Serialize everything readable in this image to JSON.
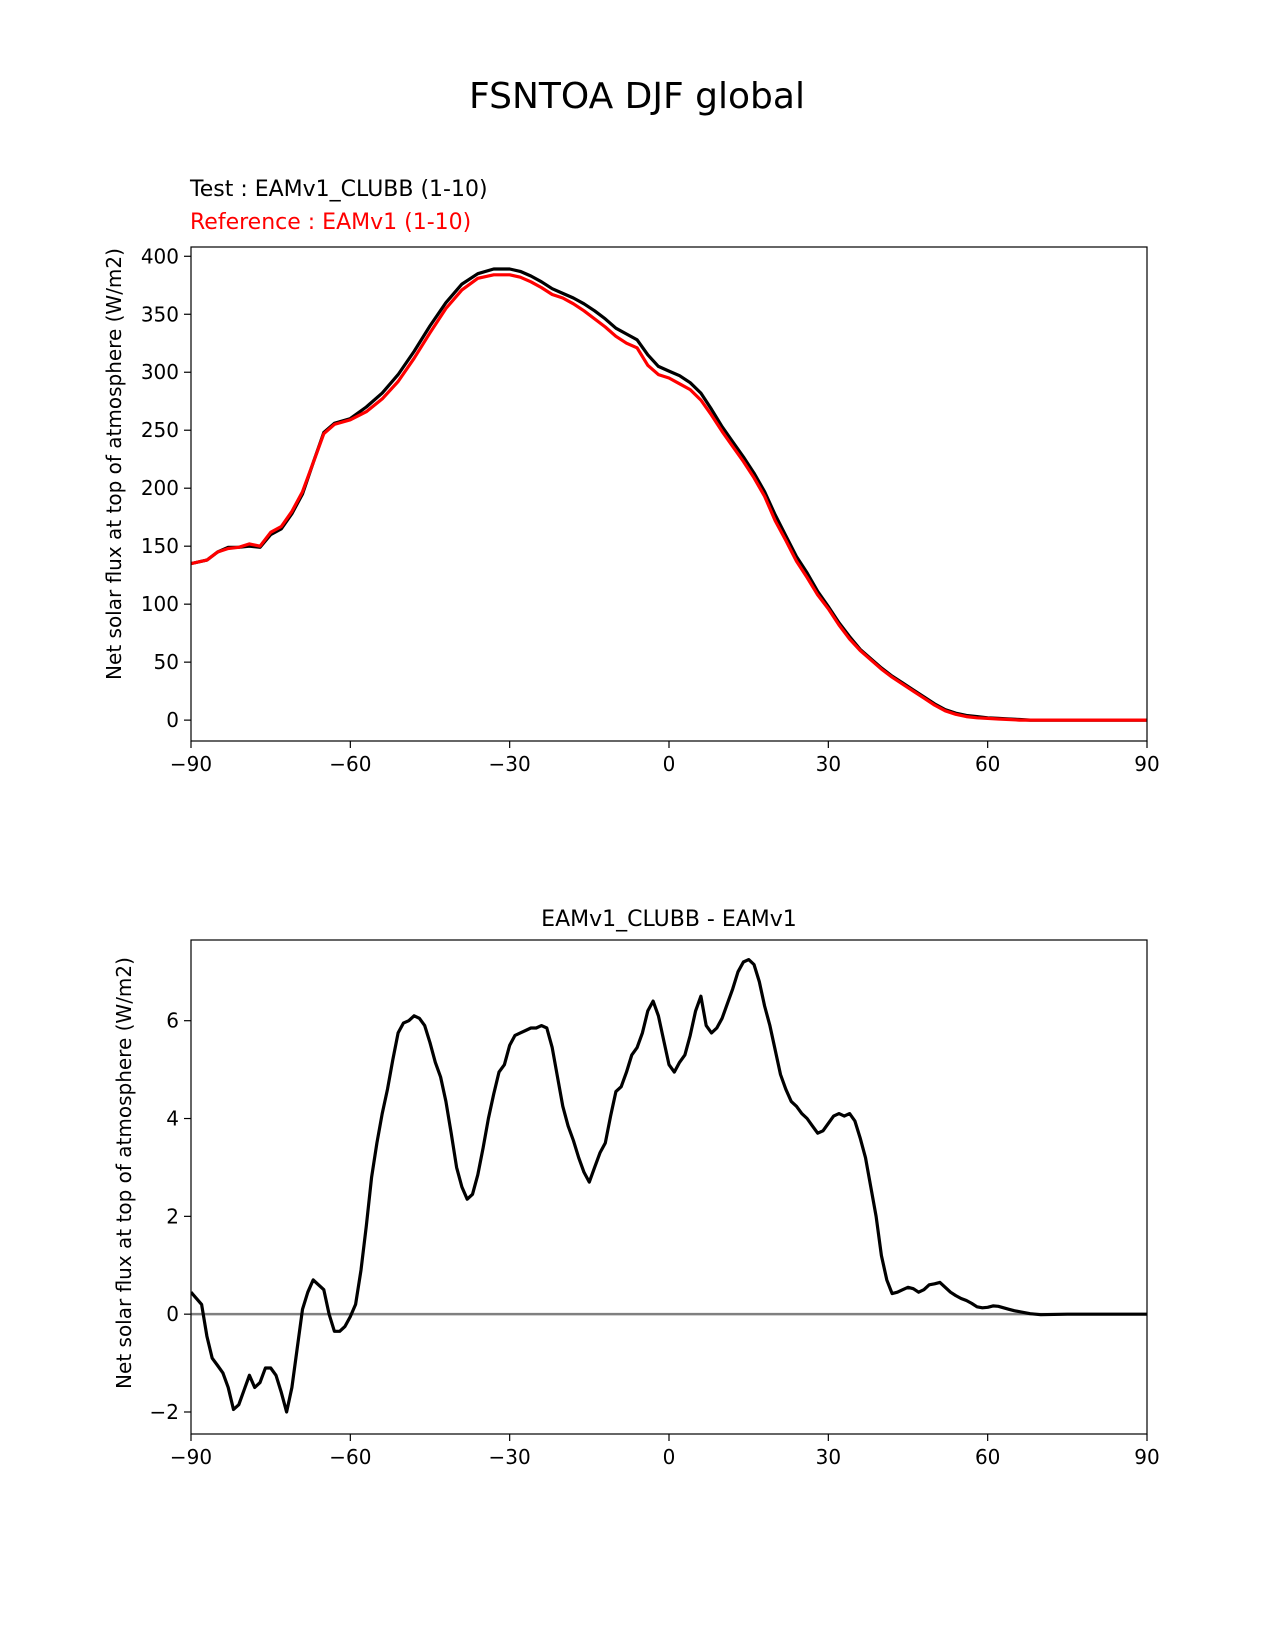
{
  "figure_title": "FSNTOA DJF global",
  "colors": {
    "test": "#000000",
    "reference": "#ff0000",
    "zero_line": "#808080",
    "axes": "#000000"
  },
  "chart_data": [
    {
      "type": "line",
      "subtitle_test": "Test : EAMv1_CLUBB (1-10)",
      "subtitle_reference": "Reference : EAMv1 (1-10)",
      "xlabel": "",
      "ylabel": "Net solar flux at top of atmosphere (W/m2)",
      "xlim": [
        -90,
        90
      ],
      "ylim": [
        -18,
        408
      ],
      "xticks": [
        -90,
        -60,
        -30,
        0,
        30,
        60,
        90
      ],
      "xtick_labels": [
        "−90",
        "−60",
        "−30",
        "0",
        "30",
        "60",
        "90"
      ],
      "yticks": [
        0,
        50,
        100,
        150,
        200,
        250,
        300,
        350,
        400
      ],
      "ytick_labels": [
        "0",
        "50",
        "100",
        "150",
        "200",
        "250",
        "300",
        "350",
        "400"
      ],
      "series": [
        {
          "name": "Test : EAMv1_CLUBB (1-10)",
          "color": "#000000",
          "x": [
            -90,
            -87,
            -85,
            -83,
            -81,
            -79,
            -77,
            -75,
            -73,
            -71,
            -69,
            -67,
            -65,
            -63,
            -60,
            -57,
            -54,
            -51,
            -48,
            -45,
            -42,
            -39,
            -36,
            -33,
            -30,
            -28,
            -26,
            -24,
            -22,
            -20,
            -18,
            -16,
            -14,
            -12,
            -10,
            -8,
            -6,
            -4,
            -2,
            0,
            2,
            4,
            6,
            8,
            10,
            12,
            14,
            16,
            18,
            20,
            22,
            24,
            26,
            28,
            30,
            32,
            34,
            36,
            38,
            40,
            42,
            44,
            46,
            48,
            50,
            52,
            54,
            56,
            58,
            60,
            62,
            64,
            66,
            68,
            70,
            72,
            75,
            80,
            85,
            90
          ],
          "y": [
            135,
            138,
            145,
            149,
            149,
            150,
            149,
            160,
            165,
            178,
            195,
            222,
            248,
            256,
            260,
            270,
            282,
            298,
            318,
            340,
            360,
            376,
            385,
            389,
            389,
            387,
            383,
            378,
            372,
            368,
            364,
            359,
            353,
            346,
            338,
            333,
            328,
            315,
            305,
            301,
            297,
            291,
            282,
            268,
            253,
            240,
            227,
            213,
            197,
            177,
            159,
            141,
            127,
            111,
            98,
            84,
            72,
            61,
            53,
            45,
            38,
            32,
            26,
            20,
            14,
            9,
            6,
            4,
            3,
            2,
            1.5,
            1,
            0.5,
            0,
            0,
            0,
            0,
            0,
            0,
            0
          ]
        },
        {
          "name": "Reference : EAMv1 (1-10)",
          "color": "#ff0000",
          "x": [
            -90,
            -87,
            -85,
            -83,
            -81,
            -79,
            -77,
            -75,
            -73,
            -71,
            -69,
            -67,
            -65,
            -63,
            -60,
            -57,
            -54,
            -51,
            -48,
            -45,
            -42,
            -39,
            -36,
            -33,
            -30,
            -28,
            -26,
            -24,
            -22,
            -20,
            -18,
            -16,
            -14,
            -12,
            -10,
            -8,
            -6,
            -4,
            -2,
            0,
            2,
            4,
            6,
            8,
            10,
            12,
            14,
            16,
            18,
            20,
            22,
            24,
            26,
            28,
            30,
            32,
            34,
            36,
            38,
            40,
            42,
            44,
            46,
            48,
            50,
            52,
            54,
            56,
            58,
            60,
            62,
            64,
            66,
            68,
            70,
            72,
            75,
            80,
            85,
            90
          ],
          "y": [
            135,
            138,
            145,
            148,
            149,
            152,
            150,
            162,
            167,
            180,
            197,
            222,
            247,
            255,
            259,
            266,
            277,
            292,
            312,
            334,
            355,
            371,
            381,
            384,
            384,
            382,
            378,
            373,
            367,
            364,
            359,
            353,
            346,
            339,
            331,
            325,
            321,
            306,
            298,
            295,
            290,
            285,
            276,
            263,
            249,
            236,
            223,
            209,
            193,
            172,
            155,
            137,
            123,
            108,
            96,
            82,
            70,
            60,
            52,
            44,
            37,
            31,
            25,
            19,
            13,
            8,
            5,
            3,
            2,
            1.5,
            1,
            0.5,
            0,
            0,
            0,
            0,
            0,
            0,
            0,
            0
          ]
        }
      ]
    },
    {
      "type": "line",
      "title": "EAMv1_CLUBB - EAMv1",
      "xlabel": "",
      "ylabel": "Net solar flux at top of atmosphere (W/m2)",
      "xlim": [
        -90,
        90
      ],
      "ylim": [
        -2.45,
        7.65
      ],
      "xticks": [
        -90,
        -60,
        -30,
        0,
        30,
        60,
        90
      ],
      "xtick_labels": [
        "−90",
        "−60",
        "−30",
        "0",
        "30",
        "60",
        "90"
      ],
      "yticks": [
        -2,
        0,
        2,
        4,
        6
      ],
      "ytick_labels": [
        "−2",
        "0",
        "2",
        "4",
        "6"
      ],
      "reference_line_y": 0,
      "series": [
        {
          "name": "EAMv1_CLUBB - EAMv1",
          "color": "#000000",
          "x": [
            -90,
            -88,
            -87,
            -86,
            -85,
            -84,
            -83,
            -82,
            -81,
            -80,
            -79,
            -78,
            -77,
            -76,
            -75,
            -74,
            -73,
            -72,
            -71,
            -70,
            -69,
            -68,
            -67,
            -66,
            -65,
            -64,
            -63,
            -62,
            -61,
            -60,
            -59,
            -58,
            -57,
            -56,
            -55,
            -54,
            -53,
            -52,
            -51,
            -50,
            -49,
            -48,
            -47,
            -46,
            -45,
            -44,
            -43,
            -42,
            -41,
            -40,
            -39,
            -38,
            -37,
            -36,
            -35,
            -34,
            -33,
            -32,
            -31,
            -30,
            -29,
            -28,
            -27,
            -26,
            -25,
            -24,
            -23,
            -22,
            -21,
            -20,
            -19,
            -18,
            -17,
            -16,
            -15,
            -14,
            -13,
            -12,
            -11,
            -10,
            -9,
            -8,
            -7,
            -6,
            -5,
            -4,
            -3,
            -2,
            -1,
            0,
            1,
            2,
            3,
            4,
            5,
            6,
            7,
            8,
            9,
            10,
            11,
            12,
            13,
            14,
            15,
            16,
            17,
            18,
            19,
            20,
            21,
            22,
            23,
            24,
            25,
            26,
            27,
            28,
            29,
            30,
            31,
            32,
            33,
            34,
            35,
            36,
            37,
            38,
            39,
            40,
            41,
            42,
            43,
            44,
            45,
            46,
            47,
            48,
            49,
            50,
            51,
            52,
            53,
            54,
            55,
            56,
            57,
            58,
            59,
            60,
            61,
            62,
            63,
            64,
            65,
            66,
            67,
            68,
            69,
            70,
            75,
            80,
            85,
            90
          ],
          "y": [
            0.45,
            0.2,
            -0.45,
            -0.9,
            -1.05,
            -1.2,
            -1.5,
            -1.95,
            -1.85,
            -1.55,
            -1.25,
            -1.5,
            -1.4,
            -1.1,
            -1.1,
            -1.25,
            -1.6,
            -2.0,
            -1.5,
            -0.7,
            0.1,
            0.45,
            0.7,
            0.6,
            0.5,
            0.0,
            -0.35,
            -0.35,
            -0.25,
            -0.05,
            0.2,
            0.9,
            1.8,
            2.8,
            3.5,
            4.1,
            4.6,
            5.2,
            5.75,
            5.95,
            6.0,
            6.1,
            6.05,
            5.9,
            5.55,
            5.15,
            4.85,
            4.35,
            3.7,
            3.0,
            2.6,
            2.35,
            2.45,
            2.85,
            3.4,
            4.0,
            4.5,
            4.95,
            5.1,
            5.5,
            5.7,
            5.75,
            5.8,
            5.85,
            5.85,
            5.9,
            5.85,
            5.45,
            4.85,
            4.25,
            3.85,
            3.55,
            3.2,
            2.9,
            2.7,
            3.0,
            3.3,
            3.5,
            4.05,
            4.55,
            4.65,
            4.95,
            5.3,
            5.45,
            5.75,
            6.2,
            6.4,
            6.1,
            5.6,
            5.1,
            4.95,
            5.15,
            5.3,
            5.7,
            6.2,
            6.5,
            5.9,
            5.75,
            5.85,
            6.05,
            6.35,
            6.65,
            7.0,
            7.2,
            7.25,
            7.15,
            6.8,
            6.3,
            5.9,
            5.4,
            4.9,
            4.6,
            4.35,
            4.25,
            4.1,
            4.0,
            3.85,
            3.7,
            3.75,
            3.9,
            4.05,
            4.1,
            4.05,
            4.1,
            3.95,
            3.6,
            3.2,
            2.6,
            2.0,
            1.2,
            0.7,
            0.42,
            0.45,
            0.5,
            0.55,
            0.52,
            0.45,
            0.5,
            0.6,
            0.62,
            0.65,
            0.55,
            0.45,
            0.38,
            0.32,
            0.28,
            0.22,
            0.15,
            0.13,
            0.14,
            0.17,
            0.16,
            0.13,
            0.1,
            0.07,
            0.05,
            0.03,
            0.01,
            0.0,
            -0.01,
            0.0,
            0.0,
            0.0,
            0.0
          ]
        }
      ]
    }
  ]
}
